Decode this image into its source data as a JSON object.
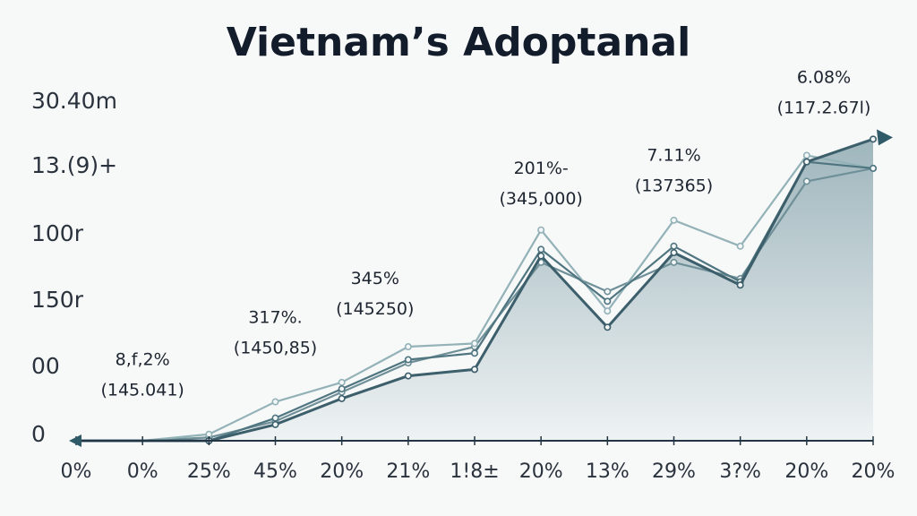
{
  "chart_data": {
    "type": "area",
    "title": "Vietnam’s Adoptanal",
    "xlabel": "",
    "ylabel": "",
    "y_tick_labels": [
      "30.40m",
      "13.(9)+",
      "100r",
      "150r",
      "00",
      "0"
    ],
    "x_tick_labels": [
      "0%",
      "0%",
      "25%",
      "45%",
      "20%",
      "21%",
      "1!8±",
      "20%",
      "13%",
      "29%",
      "3?%",
      "20%",
      "20%"
    ],
    "x": [
      0,
      1,
      2,
      3,
      4,
      5,
      6,
      7,
      8,
      9,
      10,
      11,
      12
    ],
    "ylim": [
      0,
      100
    ],
    "series": [
      {
        "values": [
          0,
          0,
          1,
          6,
          15,
          24,
          29,
          55,
          46,
          55,
          50,
          80,
          84
        ]
      },
      {
        "values": [
          0,
          0,
          2,
          12,
          18,
          29,
          30,
          65,
          40,
          68,
          60,
          88,
          84
        ]
      },
      {
        "values": [
          0,
          0,
          0,
          7,
          16,
          25,
          27,
          59,
          43,
          60,
          49,
          86,
          84
        ]
      },
      {
        "values": [
          0,
          0,
          0,
          5,
          13,
          20,
          22,
          57,
          35,
          58,
          48,
          86,
          93
        ]
      }
    ],
    "annotations": [
      {
        "x": 1,
        "y": 20,
        "label": "8,f,2%",
        "sublabel": "(145.041)"
      },
      {
        "x": 3,
        "y": 33,
        "label": "317%.",
        "sublabel": "(1450,85)"
      },
      {
        "x": 4.5,
        "y": 45,
        "label": "345%",
        "sublabel": "(145250)"
      },
      {
        "x": 7,
        "y": 79,
        "label": "201%-",
        "sublabel": "(345,000)"
      },
      {
        "x": 9,
        "y": 83,
        "label": "7.11%",
        "sublabel": "(137365)"
      },
      {
        "x": 11.3,
        "y": 107,
        "label": "6.08%",
        "sublabel": "(117.2.67l)"
      }
    ],
    "colors": {
      "fill_top": "#9fb6bd",
      "fill_bottom": "#eef2f3",
      "lines": [
        "#6f9098",
        "#93b2b8",
        "#4f7580",
        "#3c5f6b"
      ],
      "axis": "#233544",
      "arrow": "#2f5a68"
    },
    "grid": false,
    "legend": "none"
  }
}
